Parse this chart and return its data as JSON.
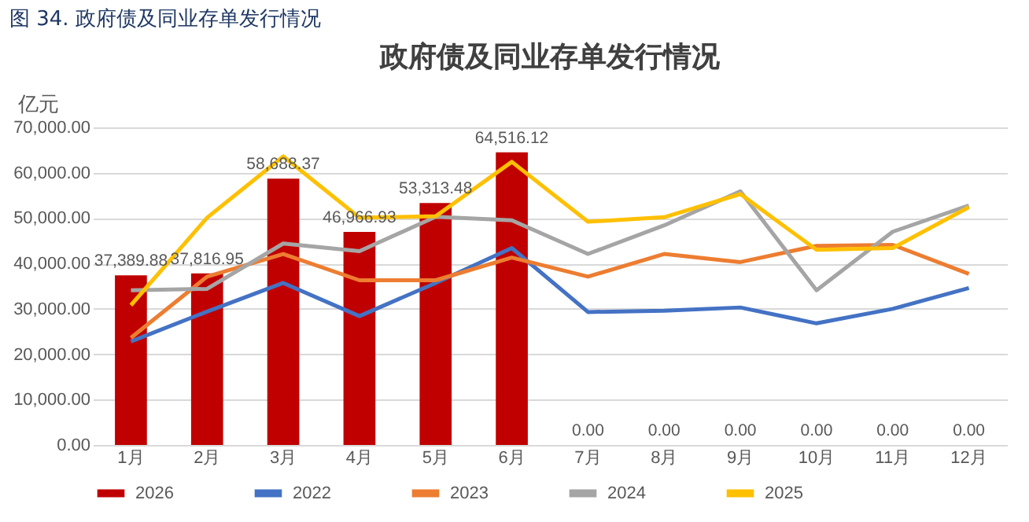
{
  "chart_data": {
    "type": "bar",
    "title": "政府债及同业存单发行情况",
    "ylabel": "亿元",
    "annotations": [
      "图 34. 政府债及同业存单发行情况"
    ],
    "categories": [
      "1月",
      "2月",
      "3月",
      "4月",
      "5月",
      "6月",
      "7月",
      "8月",
      "9月",
      "10月",
      "11月",
      "12月"
    ],
    "series": [
      {
        "name": "2026",
        "color": "#c00000",
        "values": [
          37389.88,
          37816.95,
          58688.37,
          46966.93,
          53313.48,
          64516.12,
          0,
          0,
          0,
          0,
          0,
          0
        ],
        "value_labels": [
          "37,389.88",
          "37,816.95",
          "58,688.37",
          "46,966.93",
          "53,313.48",
          "64,516.12",
          "0.00",
          "0.00",
          "0.00",
          "0.00",
          "0.00",
          "0.00"
        ]
      },
      {
        "name": "2022",
        "type": "line",
        "color": "#4472c4",
        "values": [
          22800,
          29400,
          35700,
          28400,
          35700,
          43400,
          29300,
          29600,
          30300,
          26800,
          30000,
          34600
        ]
      },
      {
        "name": "2023",
        "type": "line",
        "color": "#ed7d31",
        "values": [
          23600,
          37100,
          42100,
          36300,
          36300,
          41300,
          37100,
          42100,
          40300,
          43900,
          44100,
          37700
        ]
      },
      {
        "name": "2024",
        "type": "line",
        "color": "#a5a5a5",
        "values": [
          34100,
          34400,
          44400,
          42700,
          50300,
          49500,
          42100,
          48400,
          55900,
          34100,
          47000,
          52800
        ]
      },
      {
        "name": "2025",
        "type": "line",
        "color": "#ffc000",
        "values": [
          30800,
          50100,
          63600,
          50100,
          50400,
          62400,
          49200,
          50200,
          55300,
          43000,
          43400,
          52400
        ]
      }
    ],
    "ylim": [
      0,
      70000
    ],
    "yticks": [
      {
        "value": 0,
        "label": "0.00"
      },
      {
        "value": 10000,
        "label": "10,000.00"
      },
      {
        "value": 20000,
        "label": "20,000.00"
      },
      {
        "value": 30000,
        "label": "30,000.00"
      },
      {
        "value": 40000,
        "label": "40,000.00"
      },
      {
        "value": 50000,
        "label": "50,000.00"
      },
      {
        "value": 60000,
        "label": "60,000.00"
      },
      {
        "value": 70000,
        "label": "70,000.00"
      }
    ],
    "grid": "y",
    "legend": "bottom"
  }
}
